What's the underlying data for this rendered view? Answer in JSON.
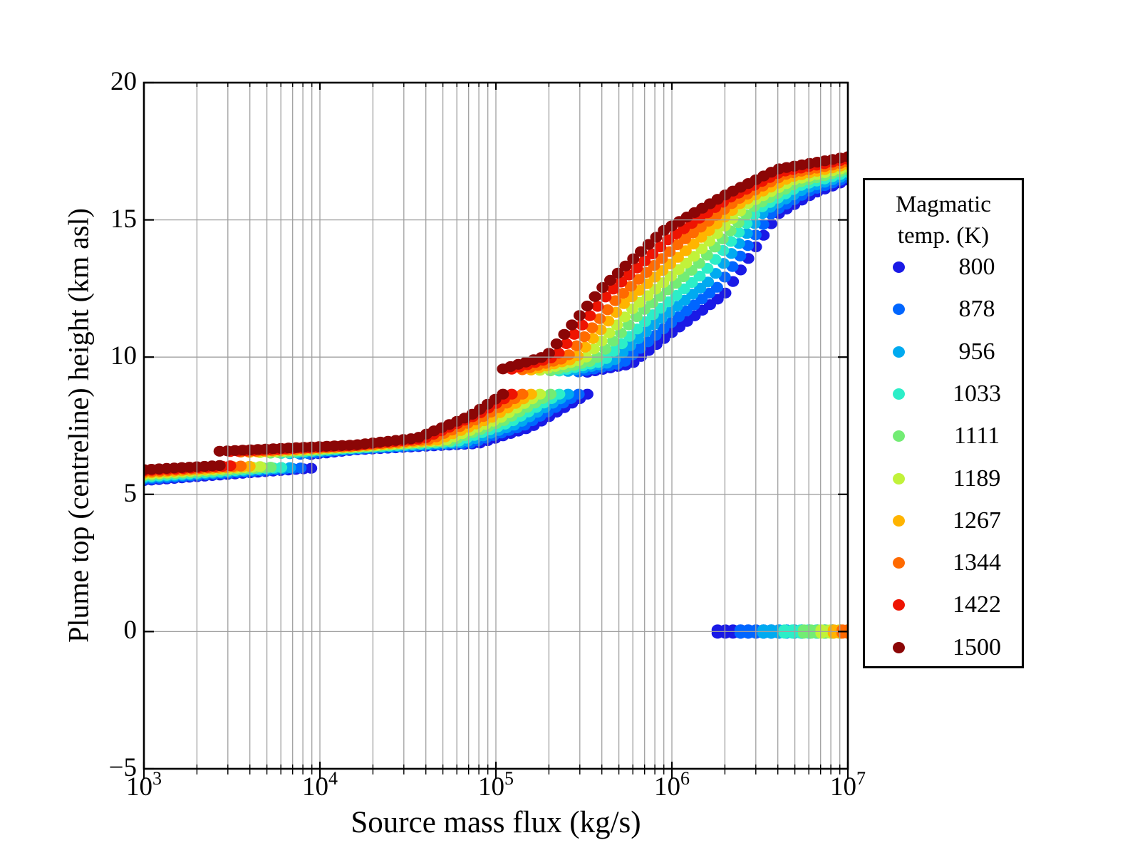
{
  "chart_data": {
    "type": "scatter",
    "xlabel": "Source mass flux (kg/s)",
    "ylabel": "Plume top (centreline) height (km asl)",
    "x_scale": "log",
    "x_range_log10": [
      3,
      7
    ],
    "ylim": [
      -5,
      20
    ],
    "x_ticks": [
      {
        "log10": 3,
        "mantissa": "10",
        "exponent": "3"
      },
      {
        "log10": 4,
        "mantissa": "10",
        "exponent": "4"
      },
      {
        "log10": 5,
        "mantissa": "10",
        "exponent": "5"
      },
      {
        "log10": 6,
        "mantissa": "10",
        "exponent": "6"
      },
      {
        "log10": 7,
        "mantissa": "10",
        "exponent": "7"
      }
    ],
    "y_ticks": [
      {
        "value": 20,
        "label": "20"
      },
      {
        "value": 15,
        "label": "15"
      },
      {
        "value": 10,
        "label": "10"
      },
      {
        "value": 5,
        "label": "5"
      },
      {
        "value": 0,
        "label": "0"
      },
      {
        "value": -5,
        "label": "−5"
      }
    ],
    "grid": {
      "vertical_minor_log": true,
      "horizontal_major": [
        0,
        5,
        10,
        15
      ],
      "color": "#a0a0a0"
    },
    "axis_color": "#000000",
    "marker": {
      "radius_x_px": 8.5,
      "radius_y_px": 7.6,
      "sample_step_log10": 0.044
    },
    "legend": {
      "title_lines": [
        "Magmatic",
        "temp. (K)"
      ],
      "position": "right-of-plot"
    },
    "series": [
      {
        "temp_K": 800,
        "label": "800",
        "color": "#1a1ae6",
        "segments": [
          [
            [
              3.0,
              5.5
            ],
            [
              3.95,
              5.95
            ]
          ],
          [
            [
              3.95,
              6.45
            ],
            [
              4.2,
              6.62
            ],
            [
              4.9,
              6.85
            ],
            [
              5.2,
              7.45
            ],
            [
              5.52,
              8.65
            ]
          ],
          [
            [
              5.52,
              9.45
            ],
            [
              5.77,
              9.75
            ],
            [
              6.0,
              10.9
            ],
            [
              6.3,
              12.3
            ],
            [
              6.6,
              15.2
            ],
            [
              6.8,
              15.95
            ],
            [
              7.0,
              16.45
            ]
          ]
        ],
        "collapse_zero_row": [
          [
            6.26,
            0
          ],
          [
            7.0,
            0
          ]
        ]
      },
      {
        "temp_K": 878,
        "label": "878",
        "color": "#0066ff",
        "segments": [
          [
            [
              3.0,
              5.54
            ],
            [
              3.89,
              5.96
            ]
          ],
          [
            [
              3.89,
              6.46
            ],
            [
              4.2,
              6.64
            ],
            [
              4.86,
              6.87
            ],
            [
              5.16,
              7.51
            ],
            [
              5.47,
              8.65
            ]
          ],
          [
            [
              5.47,
              9.46
            ],
            [
              5.72,
              9.78
            ],
            [
              5.96,
              11.08
            ],
            [
              6.26,
              12.56
            ],
            [
              6.57,
              15.28
            ],
            [
              6.78,
              16.05
            ],
            [
              7.0,
              16.54
            ]
          ]
        ],
        "collapse_zero_row": [
          [
            6.39,
            0
          ],
          [
            7.0,
            0
          ]
        ]
      },
      {
        "temp_K": 956,
        "label": "956",
        "color": "#00aaf0",
        "segments": [
          [
            [
              3.0,
              5.59
            ],
            [
              3.83,
              5.97
            ]
          ],
          [
            [
              3.83,
              6.48
            ],
            [
              4.2,
              6.66
            ],
            [
              4.82,
              6.89
            ],
            [
              5.12,
              7.56
            ],
            [
              5.41,
              8.65
            ]
          ],
          [
            [
              5.41,
              9.48
            ],
            [
              5.66,
              9.82
            ],
            [
              5.91,
              11.26
            ],
            [
              6.22,
              12.81
            ],
            [
              6.53,
              15.36
            ],
            [
              6.76,
              16.15
            ],
            [
              7.0,
              16.64
            ]
          ]
        ],
        "collapse_zero_row": [
          [
            6.52,
            0
          ],
          [
            7.0,
            0
          ]
        ]
      },
      {
        "temp_K": 1033,
        "label": "1033",
        "color": "#2ceec8",
        "segments": [
          [
            [
              3.0,
              5.63
            ],
            [
              3.78,
              5.98
            ]
          ],
          [
            [
              3.78,
              6.49
            ],
            [
              4.2,
              6.68
            ],
            [
              4.78,
              6.92
            ],
            [
              5.08,
              7.62
            ],
            [
              5.36,
              8.65
            ]
          ],
          [
            [
              5.36,
              9.49
            ],
            [
              5.61,
              9.85
            ],
            [
              5.87,
              11.43
            ],
            [
              6.18,
              13.07
            ],
            [
              6.5,
              15.43
            ],
            [
              6.73,
              16.25
            ],
            [
              7.0,
              16.73
            ]
          ]
        ],
        "collapse_zero_row": [
          [
            6.64,
            0
          ],
          [
            7.0,
            0
          ]
        ]
      },
      {
        "temp_K": 1111,
        "label": "1111",
        "color": "#73ec74",
        "segments": [
          [
            [
              3.0,
              5.68
            ],
            [
              3.72,
              5.99
            ]
          ],
          [
            [
              3.72,
              6.5
            ],
            [
              4.2,
              6.7
            ],
            [
              4.74,
              6.94
            ],
            [
              5.04,
              7.67
            ],
            [
              5.31,
              8.65
            ]
          ],
          [
            [
              5.31,
              9.5
            ],
            [
              5.56,
              9.88
            ],
            [
              5.82,
              11.61
            ],
            [
              6.14,
              13.32
            ],
            [
              6.47,
              15.51
            ],
            [
              6.71,
              16.35
            ],
            [
              7.0,
              16.83
            ]
          ]
        ],
        "collapse_zero_row": [
          [
            6.75,
            0
          ],
          [
            7.0,
            0
          ]
        ]
      },
      {
        "temp_K": 1189,
        "label": "1189",
        "color": "#c1f23a",
        "segments": [
          [
            [
              3.0,
              5.72
            ],
            [
              3.66,
              6.01
            ]
          ],
          [
            [
              3.66,
              6.52
            ],
            [
              4.2,
              6.72
            ],
            [
              4.71,
              6.96
            ],
            [
              5.01,
              7.73
            ],
            [
              5.25,
              8.65
            ]
          ],
          [
            [
              5.25,
              9.52
            ],
            [
              5.5,
              9.92
            ],
            [
              5.78,
              11.79
            ],
            [
              6.11,
              13.58
            ],
            [
              6.43,
              15.59
            ],
            [
              6.69,
              16.45
            ],
            [
              7.0,
              16.92
            ]
          ]
        ],
        "collapse_zero_row": [
          [
            6.85,
            0
          ],
          [
            7.0,
            0
          ]
        ]
      },
      {
        "temp_K": 1267,
        "label": "1267",
        "color": "#ffb400",
        "segments": [
          [
            [
              3.0,
              5.77
            ],
            [
              3.6,
              6.02
            ]
          ],
          [
            [
              3.6,
              6.53
            ],
            [
              4.2,
              6.74
            ],
            [
              4.67,
              6.98
            ],
            [
              4.97,
              7.78
            ],
            [
              5.2,
              8.65
            ]
          ],
          [
            [
              5.2,
              9.53
            ],
            [
              5.45,
              9.95
            ],
            [
              5.73,
              11.97
            ],
            [
              6.07,
              13.83
            ],
            [
              6.4,
              15.67
            ],
            [
              6.67,
              16.55
            ],
            [
              7.0,
              17.02
            ]
          ]
        ],
        "collapse_zero_row": [
          [
            6.92,
            0
          ],
          [
            7.0,
            0
          ]
        ]
      },
      {
        "temp_K": 1344,
        "label": "1344",
        "color": "#ff6a00",
        "segments": [
          [
            [
              3.0,
              5.81
            ],
            [
              3.55,
              6.03
            ]
          ],
          [
            [
              3.55,
              6.54
            ],
            [
              4.2,
              6.76
            ],
            [
              4.63,
              7.01
            ],
            [
              4.93,
              7.84
            ],
            [
              5.15,
              8.65
            ]
          ],
          [
            [
              5.15,
              9.54
            ],
            [
              5.4,
              9.98
            ],
            [
              5.69,
              12.14
            ],
            [
              6.03,
              14.09
            ],
            [
              6.37,
              15.74
            ],
            [
              6.64,
              16.65
            ],
            [
              7.0,
              17.11
            ]
          ]
        ],
        "collapse_zero_row": [
          [
            6.97,
            0
          ],
          [
            7.0,
            0
          ]
        ]
      },
      {
        "temp_K": 1422,
        "label": "1422",
        "color": "#ee1402",
        "segments": [
          [
            [
              3.0,
              5.86
            ],
            [
              3.49,
              6.04
            ]
          ],
          [
            [
              3.49,
              6.56
            ],
            [
              4.2,
              6.78
            ],
            [
              4.59,
              7.03
            ],
            [
              4.89,
              7.89
            ],
            [
              5.09,
              8.65
            ]
          ],
          [
            [
              5.09,
              9.56
            ],
            [
              5.34,
              10.02
            ],
            [
              5.64,
              12.32
            ],
            [
              5.99,
              14.34
            ],
            [
              6.33,
              15.82
            ],
            [
              6.62,
              16.75
            ],
            [
              7.0,
              17.21
            ]
          ]
        ],
        "collapse_zero_row": null
      },
      {
        "temp_K": 1500,
        "label": "1500",
        "color": "#8b0606",
        "segments": [
          [
            [
              3.0,
              5.9
            ],
            [
              3.43,
              6.05
            ]
          ],
          [
            [
              3.43,
              6.57
            ],
            [
              4.2,
              6.8
            ],
            [
              4.55,
              7.05
            ],
            [
              4.85,
              7.85
            ],
            [
              5.04,
              8.65
            ]
          ],
          [
            [
              5.04,
              9.57
            ],
            [
              5.29,
              10.05
            ],
            [
              5.6,
              12.5
            ],
            [
              5.95,
              14.6
            ],
            [
              6.3,
              15.9
            ],
            [
              6.6,
              16.85
            ],
            [
              7.0,
              17.3
            ]
          ]
        ],
        "collapse_zero_row": null
      }
    ]
  }
}
